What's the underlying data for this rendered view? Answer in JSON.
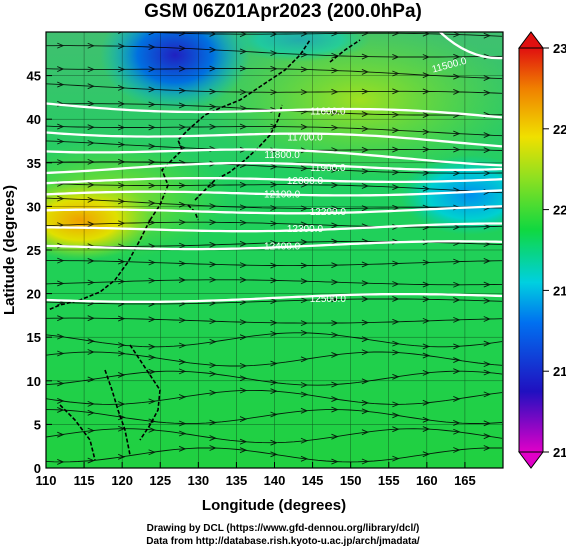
{
  "title": "GSM 06Z01Apr2023 (200.0hPa)",
  "x_axis": {
    "label": "Longitude (degrees)",
    "range": [
      110,
      170
    ],
    "ticks": [
      "110",
      "115",
      "120",
      "125",
      "130",
      "135",
      "140",
      "145",
      "150",
      "155",
      "160",
      "165"
    ]
  },
  "y_axis": {
    "label": "Latitude (degrees)",
    "range": [
      0,
      50
    ],
    "ticks": [
      "0",
      "5",
      "10",
      "15",
      "20",
      "25",
      "30",
      "35",
      "40",
      "45"
    ]
  },
  "colorbar": {
    "range": [
      210,
      230
    ],
    "ticks": [
      "210",
      "214",
      "218",
      "222",
      "226",
      "230"
    ],
    "colors": [
      "#e000c8",
      "#2010c0",
      "#0070f0",
      "#00d0e0",
      "#10d840",
      "#90e020",
      "#f0e000",
      "#f08000",
      "#e01010"
    ]
  },
  "contours": [
    {
      "label": "11600.0",
      "lat": 41.0
    },
    {
      "label": "11700.0",
      "lat": 38.0
    },
    {
      "label": "11800.0",
      "lat": 36.0
    },
    {
      "label": "11900.0",
      "lat": 34.5
    },
    {
      "label": "12000.0",
      "lat": 33.0
    },
    {
      "label": "12100.0",
      "lat": 31.5
    },
    {
      "label": "12200.0",
      "lat": 29.5
    },
    {
      "label": "12300.0",
      "lat": 27.5
    },
    {
      "label": "12400.0",
      "lat": 25.5
    },
    {
      "label": "12500.0",
      "lat": 19.5
    }
  ],
  "corner_contour": {
    "label": "11500.0"
  },
  "credits": {
    "line1": "Drawing by DCL (https://www.gfd-dennou.org/library/dcl/)",
    "line2": "Data from http://database.rish.kyoto-u.ac.jp/arch/jmadata/"
  }
}
